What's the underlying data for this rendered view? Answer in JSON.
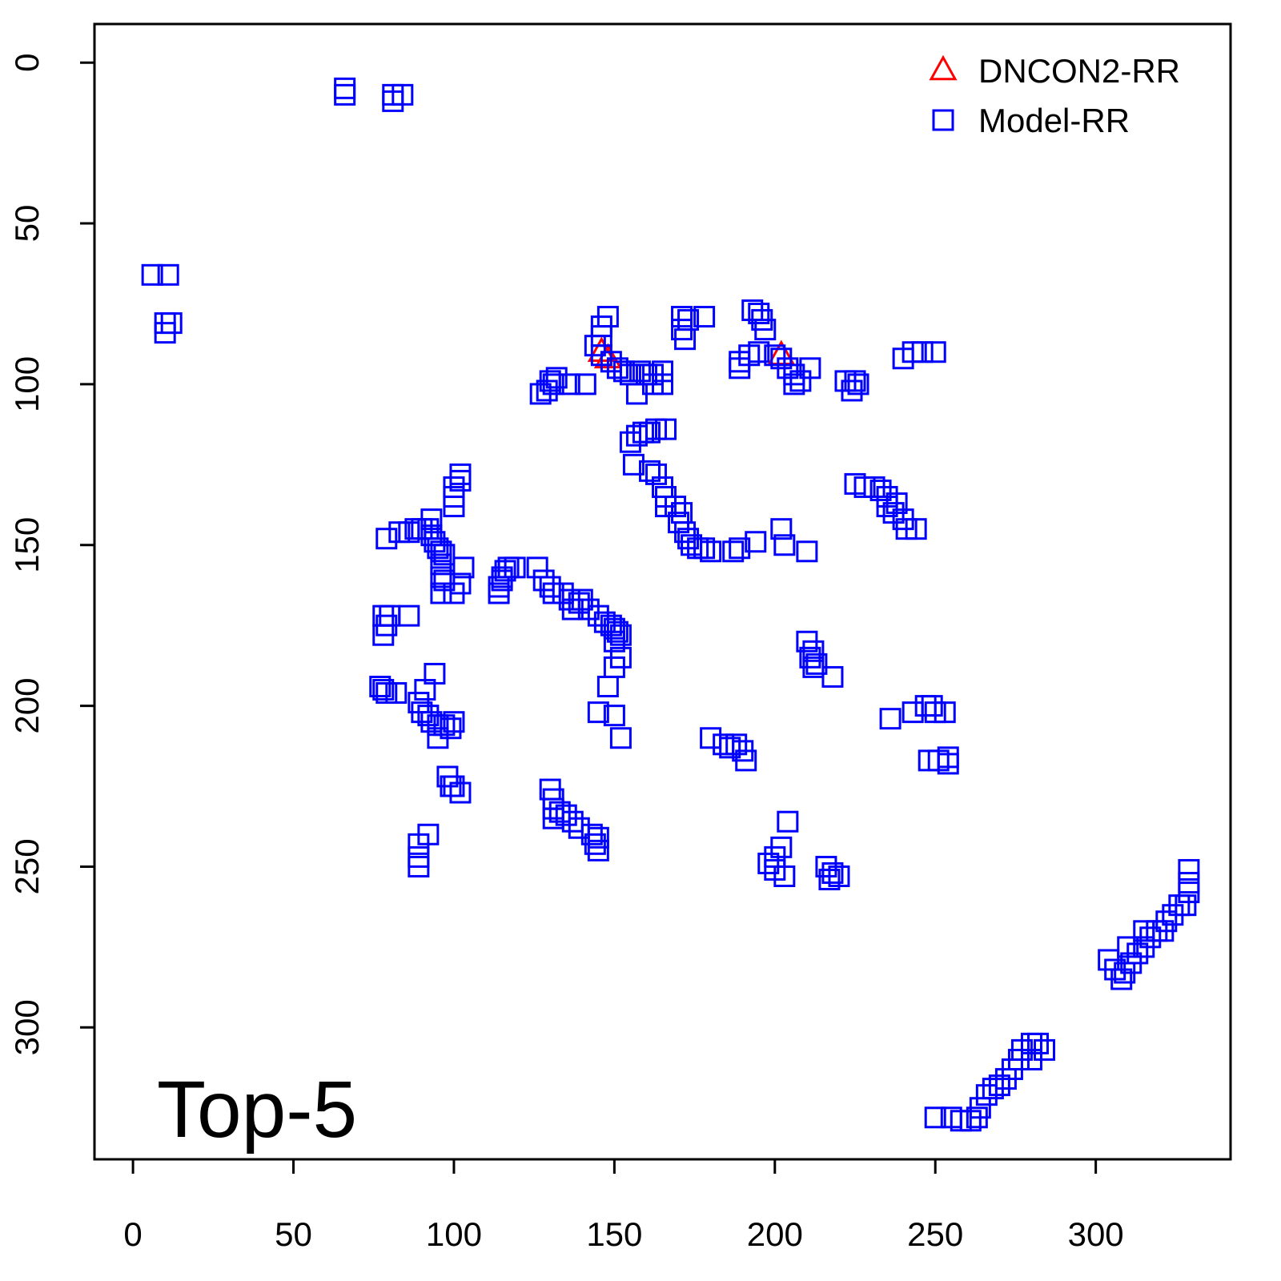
{
  "chart_data": {
    "type": "scatter",
    "annotation": "Top-5",
    "xlim": [
      -12,
      342
    ],
    "ylim": [
      341,
      -12
    ],
    "xticks": [
      0,
      50,
      100,
      150,
      200,
      250,
      300
    ],
    "yticks": [
      0,
      50,
      100,
      150,
      200,
      250,
      300
    ],
    "legend": "top-right",
    "series": [
      {
        "name": "DNCON2-RR",
        "color": "#ff0000",
        "marker": "triangle",
        "x": [
          146,
          148,
          202
        ],
        "y": [
          90,
          92,
          91
        ]
      },
      {
        "name": "Model-RR",
        "color": "#0000ff",
        "marker": "square",
        "x": [
          66,
          66,
          81,
          81,
          84,
          6,
          11,
          10,
          12,
          10,
          148,
          146,
          146,
          144,
          146,
          149,
          151,
          153,
          155,
          158,
          160,
          162,
          165,
          165,
          162,
          157,
          141,
          136,
          131,
          129,
          127,
          130,
          132,
          171,
          173,
          178,
          171,
          172,
          193,
          195,
          196,
          197,
          192,
          195,
          189,
          189,
          200,
          202,
          204,
          206,
          208,
          211,
          206,
          222,
          225,
          224,
          226,
          240,
          243,
          246,
          250,
          155,
          157,
          159,
          161,
          163,
          166,
          156,
          161,
          163,
          165,
          166,
          166,
          169,
          171,
          170,
          172,
          173,
          174,
          176,
          178,
          180,
          187,
          189,
          194,
          202,
          203,
          210,
          225,
          228,
          231,
          233,
          235,
          235,
          237,
          240,
          241,
          244,
          238,
          102,
          102,
          100,
          100,
          100,
          79,
          83,
          86,
          88,
          90,
          92,
          93,
          94,
          95,
          96,
          97,
          93,
          96,
          96,
          96,
          100,
          103,
          102,
          97,
          114,
          114,
          115,
          116,
          117,
          119,
          115,
          126,
          128,
          130,
          131,
          134,
          136,
          137,
          139,
          140,
          142,
          145,
          147,
          149,
          150,
          151,
          152,
          150,
          152,
          150,
          148,
          145,
          150,
          152,
          78,
          80,
          86,
          78,
          79,
          77,
          78,
          79,
          82,
          89,
          90,
          92,
          93,
          95,
          97,
          99,
          100,
          91,
          94,
          95,
          98,
          99,
          102,
          100,
          89,
          89,
          89,
          92,
          130,
          131,
          131,
          131,
          133,
          135,
          137,
          139,
          143,
          144,
          145,
          145,
          210,
          211,
          212,
          213,
          212,
          218,
          180,
          184,
          186,
          188,
          190,
          191,
          236,
          243,
          247,
          249,
          250,
          253,
          248,
          251,
          254,
          254,
          204,
          200,
          200,
          202,
          203,
          198,
          216,
          218,
          217,
          220,
          329,
          329,
          329,
          328,
          326,
          324,
          322,
          321,
          319,
          317,
          315,
          313,
          311,
          309,
          308,
          306,
          304,
          310,
          315,
          250,
          255,
          258,
          261,
          263,
          264,
          266,
          268,
          270,
          272,
          274,
          276,
          277,
          280,
          282,
          284,
          280
        ],
        "y": [
          8,
          10,
          10,
          12,
          10,
          66,
          66,
          81,
          81,
          84,
          79,
          82,
          85,
          88,
          91,
          93,
          95,
          96,
          97,
          96,
          97,
          97,
          96,
          100,
          100,
          103,
          100,
          100,
          100,
          102,
          103,
          99,
          98,
          79,
          80,
          79,
          83,
          86,
          77,
          78,
          80,
          83,
          91,
          90,
          93,
          95,
          91,
          92,
          95,
          97,
          99,
          95,
          100,
          99,
          99,
          102,
          100,
          92,
          90,
          90,
          90,
          118,
          116,
          115,
          115,
          114,
          114,
          125,
          127,
          128,
          132,
          135,
          138,
          138,
          140,
          143,
          146,
          148,
          150,
          151,
          151,
          152,
          152,
          151,
          149,
          145,
          150,
          152,
          131,
          132,
          132,
          133,
          135,
          138,
          140,
          142,
          145,
          145,
          137,
          128,
          130,
          132,
          135,
          138,
          148,
          146,
          146,
          145,
          145,
          145,
          147,
          149,
          151,
          152,
          153,
          142,
          156,
          160,
          165,
          165,
          157,
          162,
          161,
          165,
          163,
          160,
          158,
          157,
          157,
          161,
          157,
          161,
          163,
          165,
          165,
          167,
          170,
          168,
          167,
          170,
          172,
          174,
          175,
          176,
          177,
          178,
          180,
          185,
          188,
          194,
          202,
          203,
          210,
          172,
          172,
          172,
          178,
          175,
          194,
          195,
          196,
          196,
          199,
          202,
          203,
          205,
          206,
          206,
          207,
          205,
          195,
          190,
          210,
          222,
          225,
          227,
          225,
          243,
          247,
          250,
          240,
          226,
          229,
          232,
          235,
          233,
          234,
          236,
          238,
          240,
          243,
          245,
          241,
          180,
          185,
          188,
          187,
          183,
          191,
          210,
          212,
          213,
          212,
          214,
          217,
          204,
          202,
          200,
          200,
          202,
          202,
          217,
          217,
          218,
          216,
          236,
          247,
          251,
          244,
          253,
          249,
          250,
          252,
          254,
          253,
          251,
          255,
          258,
          262,
          262,
          265,
          267,
          270,
          270,
          272,
          275,
          277,
          280,
          283,
          285,
          282,
          279,
          275,
          270,
          328,
          328,
          329,
          329,
          328,
          325,
          321,
          319,
          318,
          316,
          313,
          310,
          307,
          305,
          305,
          307,
          310
        ]
      }
    ]
  }
}
